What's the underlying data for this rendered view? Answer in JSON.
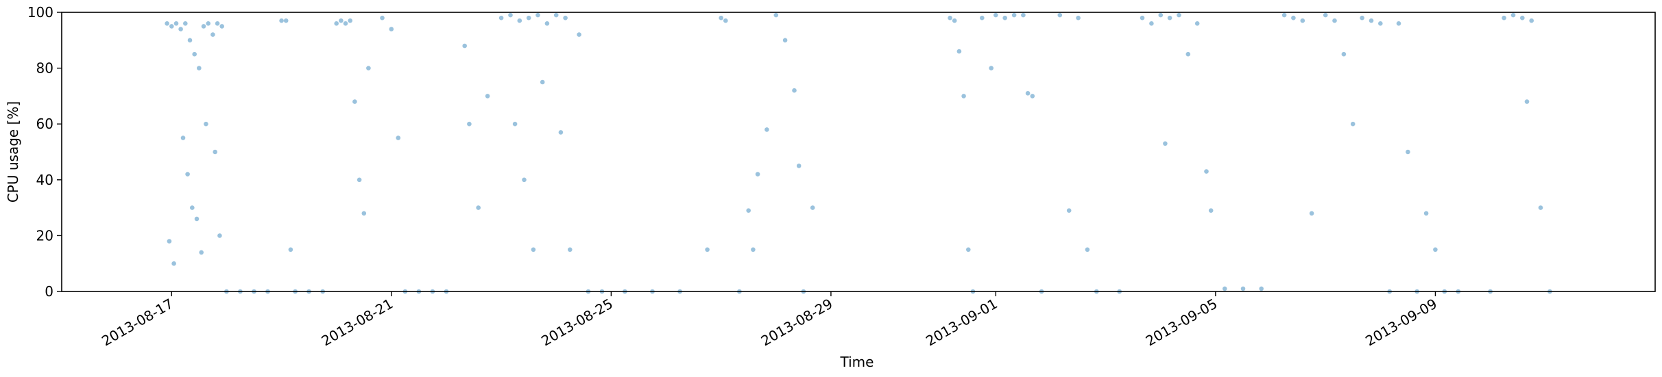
{
  "chart_data": {
    "type": "scatter",
    "title": "",
    "xlabel": "Time",
    "ylabel": "CPU usage [%]",
    "xlim": [
      "2013-08-15",
      "2013-09-13"
    ],
    "ylim": [
      0,
      100
    ],
    "grid": false,
    "legend": null,
    "x_ticks": [
      "2013-08-17",
      "2013-08-21",
      "2013-08-25",
      "2013-08-29",
      "2013-09-01",
      "2013-09-05",
      "2013-09-09"
    ],
    "y_ticks": [
      0,
      20,
      40,
      60,
      80,
      100
    ],
    "series_color": "#1f77b4",
    "marker_alpha": 0.45,
    "note_values": "points approximated from the rendered scatter",
    "series": [
      {
        "points": [
          [
            "2013-08-16T22:00",
            96
          ],
          [
            "2013-08-17T00:00",
            95
          ],
          [
            "2013-08-17T02:00",
            96
          ],
          [
            "2013-08-17T04:00",
            94
          ],
          [
            "2013-08-17T06:00",
            96
          ],
          [
            "2013-08-17T08:00",
            90
          ],
          [
            "2013-08-17T10:00",
            85
          ],
          [
            "2013-08-17T12:00",
            80
          ],
          [
            "2013-08-17T14:00",
            95
          ],
          [
            "2013-08-17T16:00",
            96
          ],
          [
            "2013-08-17T18:00",
            92
          ],
          [
            "2013-08-17T20:00",
            96
          ],
          [
            "2013-08-17T22:00",
            95
          ],
          [
            "2013-08-16T23:00",
            18
          ],
          [
            "2013-08-17T01:00",
            10
          ],
          [
            "2013-08-17T05:00",
            55
          ],
          [
            "2013-08-17T07:00",
            42
          ],
          [
            "2013-08-17T09:00",
            30
          ],
          [
            "2013-08-17T11:00",
            26
          ],
          [
            "2013-08-17T13:00",
            14
          ],
          [
            "2013-08-17T15:00",
            60
          ],
          [
            "2013-08-17T19:00",
            50
          ],
          [
            "2013-08-17T21:00",
            20
          ],
          [
            "2013-08-18T00:00",
            0
          ],
          [
            "2013-08-18T06:00",
            0
          ],
          [
            "2013-08-18T12:00",
            0
          ],
          [
            "2013-08-18T18:00",
            0
          ],
          [
            "2013-08-19T00:00",
            97
          ],
          [
            "2013-08-19T02:00",
            97
          ],
          [
            "2013-08-19T04:00",
            15
          ],
          [
            "2013-08-19T06:00",
            0
          ],
          [
            "2013-08-19T12:00",
            0
          ],
          [
            "2013-08-19T18:00",
            0
          ],
          [
            "2013-08-20T00:00",
            96
          ],
          [
            "2013-08-20T02:00",
            97
          ],
          [
            "2013-08-20T04:00",
            96
          ],
          [
            "2013-08-20T06:00",
            97
          ],
          [
            "2013-08-20T08:00",
            68
          ],
          [
            "2013-08-20T10:00",
            40
          ],
          [
            "2013-08-20T12:00",
            28
          ],
          [
            "2013-08-20T14:00",
            80
          ],
          [
            "2013-08-20T20:00",
            98
          ],
          [
            "2013-08-21T00:00",
            94
          ],
          [
            "2013-08-21T03:00",
            55
          ],
          [
            "2013-08-21T06:00",
            0
          ],
          [
            "2013-08-21T12:00",
            0
          ],
          [
            "2013-08-21T18:00",
            0
          ],
          [
            "2013-08-22T00:00",
            0
          ],
          [
            "2013-08-22T08:00",
            88
          ],
          [
            "2013-08-22T10:00",
            60
          ],
          [
            "2013-08-22T14:00",
            30
          ],
          [
            "2013-08-22T18:00",
            70
          ],
          [
            "2013-08-23T00:00",
            98
          ],
          [
            "2013-08-23T04:00",
            99
          ],
          [
            "2013-08-23T08:00",
            97
          ],
          [
            "2013-08-23T12:00",
            98
          ],
          [
            "2013-08-23T16:00",
            99
          ],
          [
            "2013-08-23T20:00",
            96
          ],
          [
            "2013-08-24T00:00",
            99
          ],
          [
            "2013-08-24T04:00",
            98
          ],
          [
            "2013-08-23T06:00",
            60
          ],
          [
            "2013-08-23T10:00",
            40
          ],
          [
            "2013-08-23T14:00",
            15
          ],
          [
            "2013-08-23T18:00",
            75
          ],
          [
            "2013-08-24T02:00",
            57
          ],
          [
            "2013-08-24T06:00",
            15
          ],
          [
            "2013-08-24T10:00",
            92
          ],
          [
            "2013-08-24T14:00",
            0
          ],
          [
            "2013-08-24T20:00",
            0
          ],
          [
            "2013-08-25T06:00",
            0
          ],
          [
            "2013-08-25T18:00",
            0
          ],
          [
            "2013-08-26T06:00",
            0
          ],
          [
            "2013-08-26T18:00",
            15
          ],
          [
            "2013-08-27T00:00",
            98
          ],
          [
            "2013-08-27T02:00",
            97
          ],
          [
            "2013-08-27T08:00",
            0
          ],
          [
            "2013-08-27T12:00",
            29
          ],
          [
            "2013-08-27T14:00",
            15
          ],
          [
            "2013-08-27T16:00",
            42
          ],
          [
            "2013-08-27T20:00",
            58
          ],
          [
            "2013-08-28T00:00",
            99
          ],
          [
            "2013-08-28T04:00",
            90
          ],
          [
            "2013-08-28T08:00",
            72
          ],
          [
            "2013-08-28T10:00",
            45
          ],
          [
            "2013-08-28T12:00",
            0
          ],
          [
            "2013-08-28T16:00",
            30
          ],
          [
            "2013-08-31T04:00",
            98
          ],
          [
            "2013-08-31T06:00",
            97
          ],
          [
            "2013-08-31T08:00",
            86
          ],
          [
            "2013-08-31T10:00",
            70
          ],
          [
            "2013-08-31T12:00",
            15
          ],
          [
            "2013-08-31T14:00",
            0
          ],
          [
            "2013-08-31T18:00",
            98
          ],
          [
            "2013-08-31T22:00",
            80
          ],
          [
            "2013-09-01T00:00",
            99
          ],
          [
            "2013-09-01T04:00",
            98
          ],
          [
            "2013-09-01T08:00",
            99
          ],
          [
            "2013-09-01T12:00",
            99
          ],
          [
            "2013-09-01T14:00",
            71
          ],
          [
            "2013-09-01T16:00",
            70
          ],
          [
            "2013-09-01T20:00",
            0
          ],
          [
            "2013-09-02T04:00",
            99
          ],
          [
            "2013-09-02T08:00",
            29
          ],
          [
            "2013-09-02T12:00",
            98
          ],
          [
            "2013-09-02T16:00",
            15
          ],
          [
            "2013-09-02T20:00",
            0
          ],
          [
            "2013-09-03T06:00",
            0
          ],
          [
            "2013-09-03T16:00",
            98
          ],
          [
            "2013-09-03T20:00",
            96
          ],
          [
            "2013-09-04T00:00",
            99
          ],
          [
            "2013-09-04T02:00",
            53
          ],
          [
            "2013-09-04T04:00",
            98
          ],
          [
            "2013-09-04T08:00",
            99
          ],
          [
            "2013-09-04T12:00",
            85
          ],
          [
            "2013-09-04T16:00",
            96
          ],
          [
            "2013-09-04T20:00",
            43
          ],
          [
            "2013-09-04T22:00",
            29
          ],
          [
            "2013-09-05T04:00",
            1
          ],
          [
            "2013-09-05T12:00",
            1
          ],
          [
            "2013-09-05T20:00",
            1
          ],
          [
            "2013-09-06T06:00",
            99
          ],
          [
            "2013-09-06T10:00",
            98
          ],
          [
            "2013-09-06T14:00",
            97
          ],
          [
            "2013-09-06T18:00",
            28
          ],
          [
            "2013-09-07T00:00",
            99
          ],
          [
            "2013-09-07T04:00",
            97
          ],
          [
            "2013-09-07T08:00",
            85
          ],
          [
            "2013-09-07T12:00",
            60
          ],
          [
            "2013-09-07T16:00",
            98
          ],
          [
            "2013-09-07T20:00",
            97
          ],
          [
            "2013-09-08T00:00",
            96
          ],
          [
            "2013-09-08T04:00",
            0
          ],
          [
            "2013-09-08T08:00",
            96
          ],
          [
            "2013-09-08T12:00",
            50
          ],
          [
            "2013-09-08T16:00",
            0
          ],
          [
            "2013-09-08T20:00",
            28
          ],
          [
            "2013-09-09T00:00",
            15
          ],
          [
            "2013-09-09T04:00",
            0
          ],
          [
            "2013-09-09T10:00",
            0
          ],
          [
            "2013-09-10T00:00",
            0
          ],
          [
            "2013-09-10T06:00",
            98
          ],
          [
            "2013-09-10T10:00",
            99
          ],
          [
            "2013-09-10T14:00",
            98
          ],
          [
            "2013-09-10T16:00",
            68
          ],
          [
            "2013-09-10T18:00",
            97
          ],
          [
            "2013-09-10T22:00",
            30
          ],
          [
            "2013-09-11T02:00",
            0
          ]
        ]
      }
    ]
  }
}
